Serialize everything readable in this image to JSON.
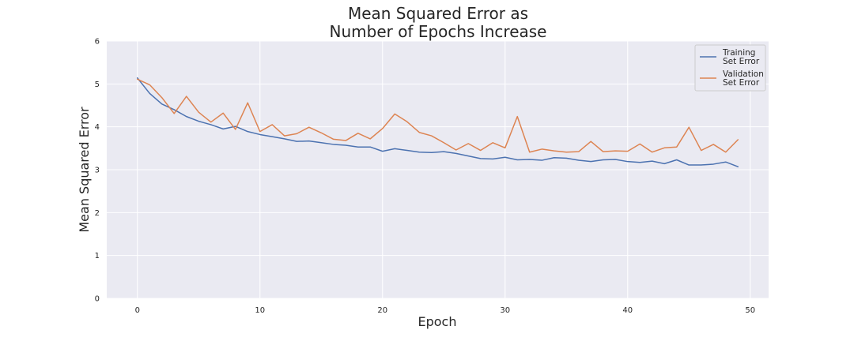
{
  "chart_data": {
    "type": "line",
    "title_lines": [
      "Mean Squared Error as",
      "Number of Epochs Increase"
    ],
    "xlabel": "Epoch",
    "ylabel": "Mean Squared Error",
    "xlim": [
      -2.5,
      51.5
    ],
    "ylim": [
      0,
      6
    ],
    "xticks": [
      0,
      10,
      20,
      30,
      40,
      50
    ],
    "yticks": [
      0,
      1,
      2,
      3,
      4,
      5,
      6
    ],
    "grid": true,
    "legend_position": "top-right",
    "x": [
      0,
      1,
      2,
      3,
      4,
      5,
      6,
      7,
      8,
      9,
      10,
      11,
      12,
      13,
      14,
      15,
      16,
      17,
      18,
      19,
      20,
      21,
      22,
      23,
      24,
      25,
      26,
      27,
      28,
      29,
      30,
      31,
      32,
      33,
      34,
      35,
      36,
      37,
      38,
      39,
      40,
      41,
      42,
      43,
      44,
      45,
      46,
      47,
      48,
      49
    ],
    "series": [
      {
        "name_lines": [
          "Training",
          "Set Error"
        ],
        "color": "#4c72b0",
        "values": [
          5.14,
          4.78,
          4.53,
          4.4,
          4.24,
          4.13,
          4.05,
          3.95,
          4.01,
          3.89,
          3.82,
          3.77,
          3.72,
          3.66,
          3.67,
          3.63,
          3.59,
          3.57,
          3.53,
          3.53,
          3.43,
          3.49,
          3.45,
          3.41,
          3.4,
          3.42,
          3.38,
          3.32,
          3.26,
          3.25,
          3.29,
          3.23,
          3.24,
          3.22,
          3.28,
          3.27,
          3.22,
          3.19,
          3.23,
          3.24,
          3.19,
          3.17,
          3.2,
          3.14,
          3.23,
          3.11,
          3.11,
          3.13,
          3.18,
          3.07
        ]
      },
      {
        "name_lines": [
          "Validation",
          "Set Error"
        ],
        "color": "#dd8452",
        "values": [
          5.11,
          4.98,
          4.68,
          4.31,
          4.71,
          4.34,
          4.11,
          4.32,
          3.94,
          4.56,
          3.89,
          4.05,
          3.79,
          3.84,
          3.99,
          3.86,
          3.71,
          3.68,
          3.85,
          3.72,
          3.96,
          4.3,
          4.12,
          3.87,
          3.79,
          3.63,
          3.46,
          3.61,
          3.45,
          3.63,
          3.51,
          4.24,
          3.41,
          3.48,
          3.44,
          3.41,
          3.42,
          3.66,
          3.42,
          3.44,
          3.43,
          3.6,
          3.41,
          3.51,
          3.53,
          3.99,
          3.45,
          3.59,
          3.41,
          3.7
        ]
      }
    ]
  }
}
